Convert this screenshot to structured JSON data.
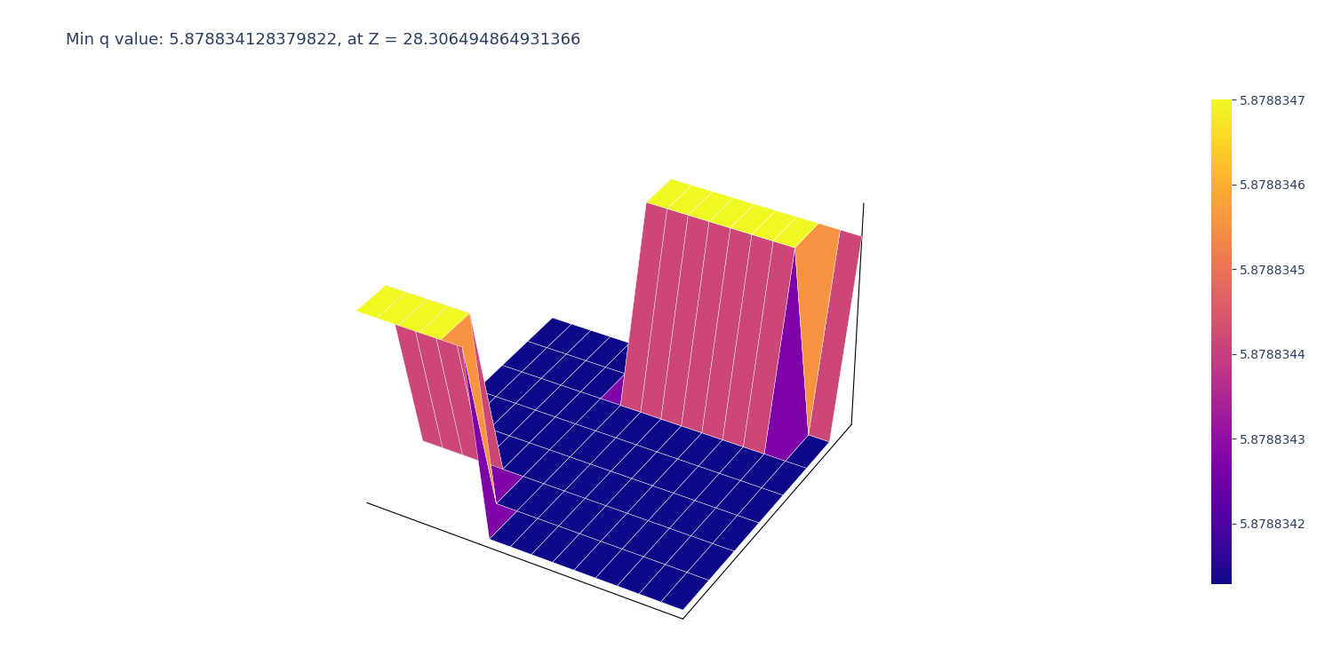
{
  "chart_data": {
    "type": "surface",
    "title": "Min q value: 5.878834128379822, at Z = 28.306494864931366",
    "x": [
      0,
      1,
      2,
      3,
      4,
      5,
      6,
      7,
      8,
      9,
      10,
      11,
      12,
      13,
      14,
      15
    ],
    "y": [
      0,
      1,
      2,
      3,
      4,
      5,
      6,
      7
    ],
    "z": [
      [
        5.8788347,
        5.8788347,
        5.8788347,
        5.8788347,
        5.8788347,
        5.8788347,
        5.8788341284,
        5.8788341284,
        5.8788341284,
        5.8788341284,
        5.8788341284,
        5.8788341284,
        5.8788341284,
        5.8788341284,
        5.8788341284,
        5.8788341284
      ],
      [
        5.8788347,
        5.8788347,
        5.8788347,
        5.8788347,
        5.8788347,
        5.8788341284,
        5.8788341284,
        5.8788341284,
        5.8788341284,
        5.8788341284,
        5.8788341284,
        5.8788341284,
        5.8788341284,
        5.8788341284,
        5.8788341284,
        5.8788341284
      ],
      [
        5.8788341284,
        5.8788341284,
        5.8788341284,
        5.8788341284,
        5.8788341284,
        5.8788341284,
        5.8788341284,
        5.8788341284,
        5.8788341284,
        5.8788341284,
        5.8788341284,
        5.8788341284,
        5.8788341284,
        5.8788341284,
        5.8788341284,
        5.8788341284
      ],
      [
        5.8788341284,
        5.8788341284,
        5.8788341284,
        5.8788341284,
        5.8788341284,
        5.8788341284,
        5.8788341284,
        5.8788341284,
        5.8788341284,
        5.8788341284,
        5.8788341284,
        5.8788341284,
        5.8788341284,
        5.8788341284,
        5.8788341284,
        5.8788341284
      ],
      [
        5.8788341284,
        5.8788341284,
        5.8788341284,
        5.8788341284,
        5.8788341284,
        5.8788341284,
        5.8788341284,
        5.8788341284,
        5.8788341284,
        5.8788341284,
        5.8788341284,
        5.8788341284,
        5.8788341284,
        5.8788341284,
        5.8788341284,
        5.8788341284
      ],
      [
        5.8788341284,
        5.8788341284,
        5.8788341284,
        5.8788341284,
        5.8788341284,
        5.8788341284,
        5.8788341284,
        5.8788341284,
        5.8788341284,
        5.8788341284,
        5.8788341284,
        5.8788341284,
        5.8788341284,
        5.8788341284,
        5.8788341284,
        5.8788341284
      ],
      [
        5.8788341284,
        5.8788341284,
        5.8788341284,
        5.8788341284,
        5.8788341284,
        5.8788341284,
        5.8788347,
        5.8788347,
        5.8788347,
        5.8788347,
        5.8788347,
        5.8788347,
        5.8788347,
        5.8788347,
        5.8788341284,
        5.8788341284
      ],
      [
        5.8788341284,
        5.8788341284,
        5.8788341284,
        5.8788341284,
        5.8788341284,
        5.8788341284,
        5.8788347,
        5.8788347,
        5.8788347,
        5.8788347,
        5.8788347,
        5.8788347,
        5.8788347,
        5.8788347,
        5.8788347,
        5.8788347
      ]
    ],
    "xlim": [
      0,
      15
    ],
    "ylim": [
      0,
      7
    ],
    "zlim": [
      5.8788341,
      5.8788348
    ],
    "colorbar_range": [
      5.8788341284,
      5.8788347
    ],
    "colorbar_ticks": [
      5.8788342,
      5.8788343,
      5.8788344,
      5.8788345,
      5.8788346,
      5.8788347
    ],
    "tick_labels": false
  }
}
